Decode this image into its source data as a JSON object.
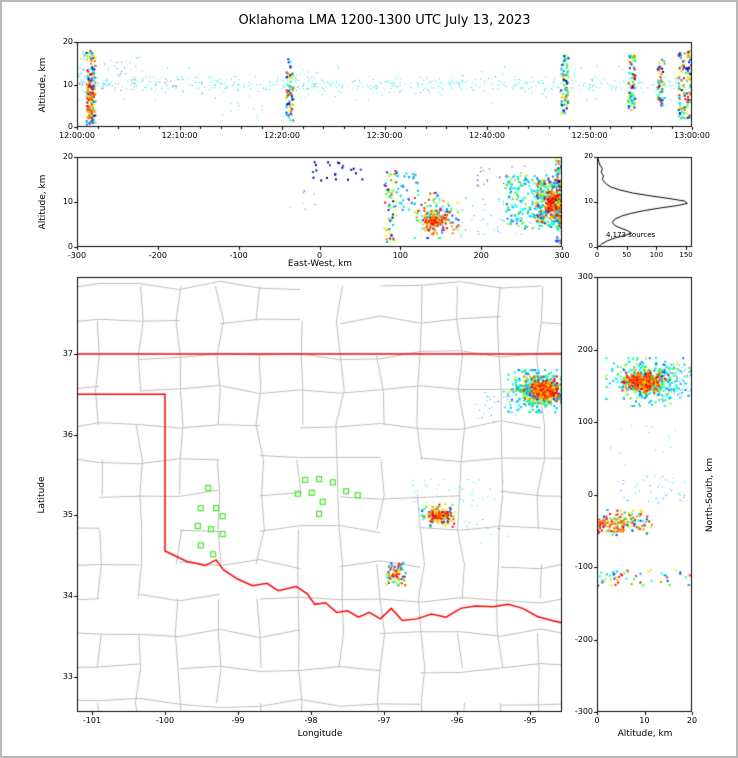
{
  "title": "Oklahoma LMA 1200-1300 UTC July 13, 2023",
  "colors": {
    "county_line": "#bdbdbd",
    "state_line": "#ff0000",
    "station_marker": "#4ce32c",
    "histogram_line": "#000000",
    "axis_frame": "#000000",
    "figure_border": "#b9b9b9",
    "background": "#ffffff"
  },
  "palettes": {
    "rainbow": [
      "#00008b",
      "#0020ff",
      "#0080ff",
      "#00c0ff",
      "#00ffff",
      "#00ff80",
      "#40ff00",
      "#a8ff00",
      "#ffff00",
      "#ffb000",
      "#ff6000",
      "#ff0000"
    ],
    "cyan": [
      "#00e0e0",
      "#00ffff",
      "#28d8e8",
      "#00c8d8"
    ],
    "cyanblue": [
      "#00cfff",
      "#0090ff",
      "#00e0e0",
      "#3060ff",
      "#00b8d8"
    ],
    "blue": [
      "#0000b0",
      "#2233ee",
      "#000080"
    ],
    "warm": [
      "#ff0000",
      "#ff3300",
      "#ff6600",
      "#ff9900",
      "#ffcc00",
      "#e00000"
    ],
    "mix": [
      "#0040ff",
      "#00a0ff",
      "#00ffd0",
      "#30ff30",
      "#c0ff00",
      "#ffd000",
      "#ff8000",
      "#ff3000",
      "#ff0000",
      "#00ffff"
    ],
    "coolmix": [
      "#00e0e0",
      "#00bfff",
      "#00ff90",
      "#40e040",
      "#0080ff",
      "#90ff20",
      "#00ffff"
    ]
  },
  "chart_data": [
    {
      "id": "time_height",
      "name": "time-height",
      "type": "scatter",
      "xlabel": "",
      "ylabel": "Altitude, km",
      "xlim": [
        0,
        3600
      ],
      "ylim": [
        0,
        20
      ],
      "xtick_values": [
        0,
        600,
        1200,
        1800,
        2400,
        3000,
        3600
      ],
      "xtick_labels": [
        "12:00:00",
        "12:10:00",
        "12:20:00",
        "12:30:00",
        "12:40:00",
        "12:50:00",
        "13:00:00"
      ],
      "ytick_values": [
        0,
        10,
        20
      ],
      "seed": 101,
      "clusters": [
        {
          "n": 420,
          "x": [
            0,
            3600
          ],
          "y": [
            8.2,
            11.8
          ],
          "gy": true,
          "colors": "cyan",
          "size": 1
        },
        {
          "n": 70,
          "x": [
            0,
            3600
          ],
          "y": [
            5.5,
            14.5
          ],
          "colors": "cyan",
          "size": 1
        },
        {
          "n": 25,
          "x": [
            5,
            50
          ],
          "y": [
            8,
            18
          ],
          "colors": "cyanblue",
          "size": 1
        },
        {
          "n": 130,
          "x": [
            55,
            110
          ],
          "y": [
            0.5,
            18
          ],
          "colors": "rainbow",
          "size": 2
        },
        {
          "n": 50,
          "x": [
            60,
            95
          ],
          "y": [
            2,
            10
          ],
          "colors": "warm",
          "size": 2
        },
        {
          "n": 25,
          "x": [
            250,
            600
          ],
          "y": [
            8.5,
            12
          ],
          "colors": "mix",
          "size": 1
        },
        {
          "n": 18,
          "x": [
            150,
            400
          ],
          "y": [
            12,
            16.5
          ],
          "colors": "cyanblue",
          "size": 1
        },
        {
          "n": 12,
          "x": [
            850,
            1350
          ],
          "y": [
            2,
            5.5
          ],
          "colors": "cyan",
          "size": 1
        },
        {
          "n": 70,
          "x": [
            1225,
            1268
          ],
          "y": [
            1.5,
            16
          ],
          "colors": "rainbow",
          "size": 2
        },
        {
          "n": 25,
          "x": [
            1280,
            1450
          ],
          "y": [
            7,
            13
          ],
          "colors": "cyan",
          "size": 1
        },
        {
          "n": 30,
          "x": [
            1500,
            2750
          ],
          "y": [
            7.5,
            12
          ],
          "colors": "cyan",
          "size": 1
        },
        {
          "n": 85,
          "x": [
            2830,
            2878
          ],
          "y": [
            3,
            17
          ],
          "colors": "rainbow",
          "size": 2
        },
        {
          "n": 75,
          "x": [
            3225,
            3268
          ],
          "y": [
            4,
            17
          ],
          "colors": "rainbow",
          "size": 2
        },
        {
          "n": 55,
          "x": [
            3398,
            3440
          ],
          "y": [
            5,
            16
          ],
          "colors": "rainbow",
          "size": 2
        },
        {
          "n": 120,
          "x": [
            3520,
            3598
          ],
          "y": [
            2,
            18
          ],
          "colors": "rainbow",
          "size": 2
        }
      ]
    },
    {
      "id": "ew_alt",
      "name": "east-west-height",
      "type": "scatter",
      "xlabel": "East-West, km",
      "ylabel": "Altitude, km",
      "xlim": [
        -300,
        300
      ],
      "ylim": [
        0,
        20
      ],
      "xtick_values": [
        -300,
        -200,
        -100,
        0,
        100,
        200,
        300
      ],
      "ytick_values": [
        0,
        10,
        20
      ],
      "seed": 202,
      "clusters": [
        {
          "n": 22,
          "x": [
            -15,
            55
          ],
          "y": [
            14.5,
            19
          ],
          "colors": "blue",
          "size": 2
        },
        {
          "n": 10,
          "x": [
            -45,
            -5
          ],
          "y": [
            8,
            13
          ],
          "colors": "cyanblue",
          "size": 1
        },
        {
          "n": 65,
          "x": [
            80,
            96
          ],
          "y": [
            1,
            17
          ],
          "colors": "rainbow",
          "size": 2
        },
        {
          "n": 28,
          "x": [
            96,
            122
          ],
          "y": [
            8,
            17
          ],
          "colors": "cyanblue",
          "size": 2
        },
        {
          "n": 150,
          "x": [
            118,
            172
          ],
          "y": [
            2,
            12
          ],
          "gx": true,
          "gy": true,
          "colors": "mix",
          "size": 2
        },
        {
          "n": 80,
          "x": [
            128,
            158
          ],
          "y": [
            3,
            8.5
          ],
          "gx": true,
          "gy": true,
          "colors": "warm",
          "size": 2
        },
        {
          "n": 45,
          "x": [
            170,
            262
          ],
          "y": [
            2,
            11
          ],
          "colors": "cyanblue",
          "size": 1
        },
        {
          "n": 25,
          "x": [
            195,
            255
          ],
          "y": [
            13,
            18
          ],
          "colors": "blue",
          "size": 1
        },
        {
          "n": 220,
          "x": [
            230,
            300
          ],
          "y": [
            4,
            16
          ],
          "colors": "coolmix",
          "size": 2
        },
        {
          "n": 260,
          "x": [
            268,
            300
          ],
          "y": [
            5,
            15
          ],
          "colors": "mix",
          "size": 2
        },
        {
          "n": 190,
          "x": [
            282,
            300
          ],
          "y": [
            7,
            12.5
          ],
          "gy": true,
          "colors": "warm",
          "size": 2
        },
        {
          "n": 90,
          "x": [
            292,
            300
          ],
          "y": [
            0.5,
            20
          ],
          "colors": "rainbow",
          "size": 2
        }
      ]
    },
    {
      "id": "histogram",
      "name": "altitude-histogram",
      "type": "line",
      "xlabel": "",
      "ylabel": "",
      "xlim": [
        0,
        160
      ],
      "ylim": [
        0,
        20
      ],
      "xtick_values": [
        0,
        50,
        100,
        150
      ],
      "ytick_values": [
        0,
        10,
        20
      ],
      "annotation": "4,173 sources",
      "line_points": [
        [
          2,
          0
        ],
        [
          8,
          0.7
        ],
        [
          18,
          1.4
        ],
        [
          30,
          2
        ],
        [
          48,
          2.6
        ],
        [
          58,
          3.1
        ],
        [
          52,
          3.6
        ],
        [
          40,
          4.2
        ],
        [
          30,
          4.8
        ],
        [
          26,
          5.5
        ],
        [
          30,
          6.2
        ],
        [
          42,
          6.9
        ],
        [
          58,
          7.5
        ],
        [
          80,
          8.1
        ],
        [
          108,
          8.7
        ],
        [
          135,
          9.2
        ],
        [
          152,
          9.7
        ],
        [
          148,
          10.2
        ],
        [
          120,
          10.8
        ],
        [
          88,
          11.4
        ],
        [
          60,
          12
        ],
        [
          38,
          12.7
        ],
        [
          22,
          13.4
        ],
        [
          14,
          14.2
        ],
        [
          9,
          15
        ],
        [
          11,
          15.8
        ],
        [
          7,
          16.6
        ],
        [
          9,
          17.4
        ],
        [
          5,
          18.2
        ],
        [
          3,
          19
        ],
        [
          1,
          20
        ]
      ]
    },
    {
      "id": "map",
      "name": "plan-view",
      "type": "scatter",
      "xlabel": "Longitude",
      "ylabel": "Latitude",
      "xlim": [
        -101.205,
        -94.562
      ],
      "ylim": [
        32.567,
        37.953
      ],
      "xtick_values": [
        -101,
        -100,
        -99,
        -98,
        -97,
        -96,
        -95
      ],
      "ytick_values": [
        33,
        34,
        35,
        36,
        37
      ],
      "seed": 303,
      "county_grid": {
        "lon_start": -101.45,
        "lon_end": -94.3,
        "lon_step": 0.55,
        "lat_start": 32.25,
        "lat_end": 38.1,
        "lat_step": 0.43,
        "jitter": 0.06,
        "skip": 0.15,
        "seed": 11
      },
      "state_border": [
        [
          [
            -101.21,
            37
          ],
          [
            -94.56,
            37
          ]
        ],
        [
          [
            -101.21,
            36.5
          ],
          [
            -100,
            36.5
          ],
          [
            -100,
            34.56
          ],
          [
            -99.7,
            34.43
          ],
          [
            -99.58,
            34.41
          ],
          [
            -99.45,
            34.38
          ],
          [
            -99.3,
            34.45
          ],
          [
            -99.2,
            34.33
          ],
          [
            -99,
            34.21
          ],
          [
            -98.8,
            34.13
          ],
          [
            -98.6,
            34.16
          ],
          [
            -98.45,
            34.07
          ],
          [
            -98.2,
            34.12
          ],
          [
            -98.05,
            34.03
          ],
          [
            -97.95,
            33.9
          ],
          [
            -97.8,
            33.92
          ],
          [
            -97.65,
            33.8
          ],
          [
            -97.5,
            33.82
          ],
          [
            -97.35,
            33.74
          ],
          [
            -97.2,
            33.8
          ],
          [
            -97.05,
            33.72
          ],
          [
            -96.9,
            33.85
          ],
          [
            -96.75,
            33.7
          ],
          [
            -96.55,
            33.72
          ],
          [
            -96.35,
            33.78
          ],
          [
            -96.15,
            33.74
          ],
          [
            -95.95,
            33.85
          ],
          [
            -95.75,
            33.88
          ],
          [
            -95.5,
            33.87
          ],
          [
            -95.3,
            33.9
          ],
          [
            -95.1,
            33.85
          ],
          [
            -94.9,
            33.75
          ],
          [
            -94.7,
            33.7
          ],
          [
            -94.56,
            33.67
          ]
        ]
      ],
      "stations": [
        [
          -99.41,
          35.34
        ],
        [
          -99.51,
          35.09
        ],
        [
          -99.3,
          35.09
        ],
        [
          -99.21,
          34.99
        ],
        [
          -99.55,
          34.87
        ],
        [
          -99.37,
          34.83
        ],
        [
          -99.21,
          34.77
        ],
        [
          -99.51,
          34.63
        ],
        [
          -99.34,
          34.52
        ],
        [
          -98.08,
          35.44
        ],
        [
          -97.89,
          35.45
        ],
        [
          -97.7,
          35.41
        ],
        [
          -98.18,
          35.27
        ],
        [
          -97.99,
          35.28
        ],
        [
          -97.52,
          35.3
        ],
        [
          -97.36,
          35.25
        ],
        [
          -97.84,
          35.17
        ],
        [
          -97.89,
          35.02
        ]
      ],
      "clusters": [
        {
          "n": 320,
          "x": [
            -95.3,
            -94.57
          ],
          "y": [
            36.28,
            36.8
          ],
          "gx": true,
          "gy": true,
          "colors": "coolmix",
          "size": 2
        },
        {
          "n": 330,
          "x": [
            -95.08,
            -94.58
          ],
          "y": [
            36.38,
            36.72
          ],
          "gx": true,
          "gy": true,
          "colors": "mix",
          "size": 2
        },
        {
          "n": 330,
          "x": [
            -94.97,
            -94.63
          ],
          "y": [
            36.45,
            36.64
          ],
          "gx": true,
          "gy": true,
          "colors": "warm",
          "size": 2
        },
        {
          "n": 35,
          "x": [
            -95.75,
            -95.2
          ],
          "y": [
            36.15,
            36.6
          ],
          "colors": "cyanblue",
          "size": 1
        },
        {
          "n": 110,
          "x": [
            -96.48,
            -96.02
          ],
          "y": [
            34.86,
            35.14
          ],
          "gx": true,
          "gy": true,
          "colors": "mix",
          "size": 2
        },
        {
          "n": 85,
          "x": [
            -96.38,
            -96.08
          ],
          "y": [
            34.94,
            35.08
          ],
          "gx": true,
          "gy": true,
          "colors": "warm",
          "size": 2
        },
        {
          "n": 45,
          "x": [
            -96.65,
            -95.35
          ],
          "y": [
            35.05,
            35.45
          ],
          "colors": "cyan",
          "size": 1
        },
        {
          "n": 55,
          "x": [
            -96.97,
            -96.7
          ],
          "y": [
            34.13,
            34.42
          ],
          "colors": "mix",
          "size": 2
        },
        {
          "n": 18,
          "x": [
            -96.92,
            -96.78
          ],
          "y": [
            34.24,
            34.36
          ],
          "colors": "warm",
          "size": 2
        },
        {
          "n": 12,
          "x": [
            -95.9,
            -95.3
          ],
          "y": [
            34.6,
            35
          ],
          "colors": "cyanblue",
          "size": 1
        }
      ]
    },
    {
      "id": "ns_alt",
      "name": "north-south-height",
      "type": "scatter",
      "xlabel": "Altitude, km",
      "ylabel": "North-South, km",
      "xlim": [
        0,
        20
      ],
      "ylim": [
        -300,
        300
      ],
      "xtick_values": [
        0,
        10,
        20
      ],
      "ytick_values": [
        300,
        200,
        100,
        0,
        -100,
        -200,
        -300
      ],
      "seed": 404,
      "clusters": [
        {
          "n": 280,
          "x": [
            2,
            20
          ],
          "y": [
            122,
            188
          ],
          "gx": true,
          "gy": true,
          "colors": "coolmix",
          "size": 2
        },
        {
          "n": 240,
          "x": [
            5,
            15
          ],
          "y": [
            138,
            172
          ],
          "gx": true,
          "gy": true,
          "colors": "mix",
          "size": 2
        },
        {
          "n": 200,
          "x": [
            6,
            13
          ],
          "y": [
            143,
            168
          ],
          "gx": true,
          "gy": true,
          "colors": "warm",
          "size": 2
        },
        {
          "n": 50,
          "x": [
            14,
            20
          ],
          "y": [
            135,
            180
          ],
          "colors": "cyanblue",
          "size": 1
        },
        {
          "n": 110,
          "x": [
            0,
            12
          ],
          "y": [
            -56,
            -20
          ],
          "gx": true,
          "gy": true,
          "colors": "mix",
          "size": 2
        },
        {
          "n": 60,
          "x": [
            0,
            6
          ],
          "y": [
            -53,
            -33
          ],
          "colors": "warm",
          "size": 2
        },
        {
          "n": 45,
          "x": [
            4,
            19
          ],
          "y": [
            -15,
            28
          ],
          "colors": "cyanblue",
          "size": 1
        },
        {
          "n": 55,
          "x": [
            0,
            20
          ],
          "y": [
            -126,
            -104
          ],
          "colors": "mix",
          "size": 2
        },
        {
          "n": 15,
          "x": [
            2,
            18
          ],
          "y": [
            40,
            95
          ],
          "colors": "cyan",
          "size": 1
        }
      ]
    }
  ]
}
